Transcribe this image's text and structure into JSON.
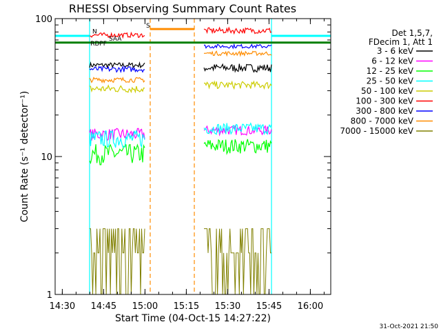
{
  "chart_data": {
    "type": "line",
    "title": "RHESSI Observing Summary Count Rates",
    "xlabel": "Start Time (04-Oct-15 14:27:22)",
    "ylabel": "Count Rate (s⁻¹ detector⁻¹)",
    "yscale": "log",
    "ylim": [
      1,
      100
    ],
    "xlim_minutes": [
      0,
      100
    ],
    "x_ticks": [
      {
        "m": 2.6,
        "label": "14:30"
      },
      {
        "m": 17.6,
        "label": "14:45"
      },
      {
        "m": 32.6,
        "label": "15:00"
      },
      {
        "m": 47.6,
        "label": "15:15"
      },
      {
        "m": 62.6,
        "label": "15:30"
      },
      {
        "m": 77.6,
        "label": "15:45"
      },
      {
        "m": 92.6,
        "label": "16:00"
      }
    ],
    "y_ticks": [
      {
        "v": 1,
        "label": "1"
      },
      {
        "v": 10,
        "label": "10"
      },
      {
        "v": 100,
        "label": "100"
      }
    ],
    "legend": {
      "header": [
        "Det 1,5,7,",
        "FDecim 1, Att 1"
      ],
      "placement": "right"
    },
    "footer_date": "31-Oct-2021 21:50",
    "flag_labels": {
      "N": "N",
      "S": "S",
      "RDPF": "RDPF",
      "SAA": "SAA"
    },
    "colors": {
      "axis": "#000000",
      "night": "#00ffff",
      "saa": "#ff8c00",
      "rdpf_line": "#007f00"
    },
    "series": [
      {
        "name": "3 - 6 keV",
        "color": "#000000",
        "segments": [
          [
            12.5,
            32.5,
            46,
            2
          ],
          [
            54,
            78.5,
            44,
            3
          ]
        ]
      },
      {
        "name": "6 - 12 keV",
        "color": "#ff00ff",
        "segments": [
          [
            12.5,
            32.5,
            14.5,
            1.5
          ],
          [
            54,
            78.5,
            15.5,
            1.2
          ]
        ]
      },
      {
        "name": "12 - 25 keV",
        "color": "#00ff00",
        "segments": [
          [
            12.5,
            32.5,
            10.5,
            1.8
          ],
          [
            54,
            78.5,
            12,
            1.5
          ]
        ]
      },
      {
        "name": "25 - 50 keV",
        "color": "#00ffff",
        "segments": [
          [
            12.5,
            32.5,
            13.5,
            2
          ],
          [
            54,
            78.5,
            16,
            1.5
          ]
        ]
      },
      {
        "name": "50 - 100 keV",
        "color": "#cccc00",
        "segments": [
          [
            12.5,
            32.5,
            31,
            2
          ],
          [
            54,
            78.5,
            33,
            2
          ]
        ]
      },
      {
        "name": "100 - 300 keV",
        "color": "#ff0000",
        "segments": [
          [
            12.5,
            32.5,
            76,
            3
          ],
          [
            54,
            78.5,
            82,
            4
          ]
        ]
      },
      {
        "name": "300 - 800 keV",
        "color": "#0000ff",
        "segments": [
          [
            12.5,
            32.5,
            43,
            2
          ],
          [
            54,
            78.5,
            63,
            2
          ]
        ]
      },
      {
        "name": "800 - 7000 keV",
        "color": "#ff8c00",
        "segments": [
          [
            12.5,
            32.5,
            36,
            1.5
          ],
          [
            54,
            78.5,
            56,
            2
          ]
        ]
      },
      {
        "name": "7000 - 15000 keV",
        "color": "#808000",
        "segments": [
          [
            12.5,
            32.5,
            1.8,
            0.5
          ],
          [
            54,
            78.5,
            1.9,
            0.5
          ]
        ]
      }
    ],
    "night_periods": [
      [
        0,
        12.5
      ],
      [
        78.5,
        100
      ]
    ],
    "saa_periods": [
      [
        34.5,
        50.5
      ]
    ],
    "rdpf_level": 67,
    "night_level": 75
  }
}
